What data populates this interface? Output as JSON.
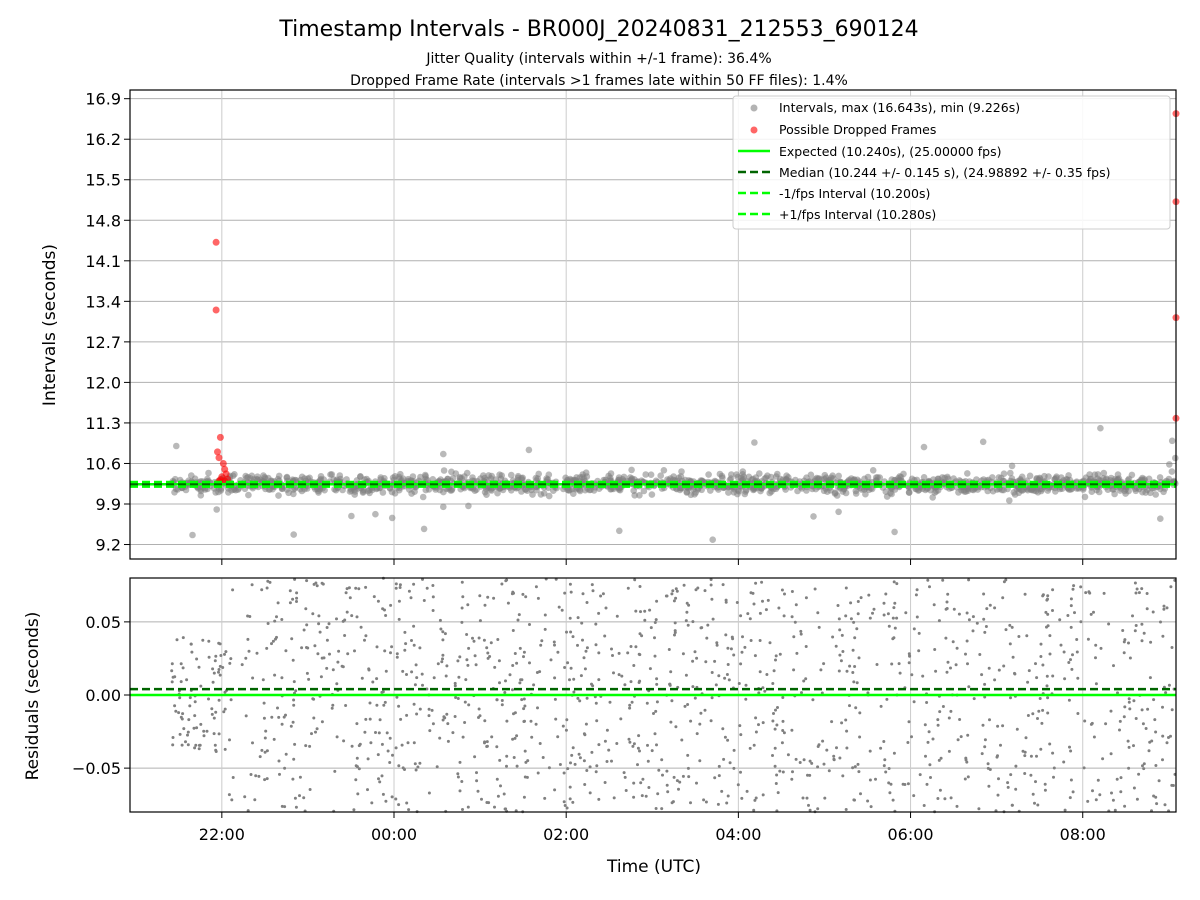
{
  "title": "Timestamp Intervals - BR000J_20240831_212553_690124",
  "subtitle_lines": [
    "Jitter Quality (intervals within +/-1 frame): 36.4%",
    "Dropped Frame Rate (intervals >1 frames late within 50 FF files): 1.4%"
  ],
  "colors": {
    "intervals": "#808080",
    "dropped": "#ff0000",
    "expected": "#00ff00",
    "median": "#006400",
    "jitter_bound": "#00ff00",
    "grid": "#b0b0b0"
  },
  "chart_data": [
    {
      "type": "scatter",
      "panel": "intervals",
      "ylabel": "Intervals (seconds)",
      "ylim": [
        8.95,
        17.05
      ],
      "y_ticks": [
        "9.2",
        "9.9",
        "10.6",
        "11.3",
        "12.0",
        "12.7",
        "13.4",
        "14.1",
        "14.8",
        "15.5",
        "16.2",
        "16.9"
      ],
      "grid": true,
      "legend_position": "top-right",
      "legend": [
        "Intervals, max (16.643s), min (9.226s)",
        "Possible Dropped Frames",
        "Expected (10.240s), (25.00000 fps)",
        "Median (10.244 +/- 0.145 s), (24.98892 +/- 0.35 fps)",
        "-1/fps Interval (10.200s)",
        "+1/fps Interval (10.280s)"
      ],
      "x_range": [
        "2024-08-31 20:54 UTC",
        "2024-09-01 09:05 UTC"
      ],
      "intervals_summary": {
        "start": "2024-08-31 21:25 UTC",
        "end": "2024-09-01 09:05 UTC",
        "center": 10.24,
        "typical_spread": 0.15,
        "max": 16.643,
        "min": 9.226
      },
      "reference_lines": {
        "expected": 10.24,
        "median": 10.244,
        "minus_1_fps": 10.2,
        "plus_1_fps": 10.28
      },
      "possible_dropped_frames": [
        {
          "t": "21:56",
          "y": 14.42
        },
        {
          "t": "21:56",
          "y": 13.25
        },
        {
          "t": "21:59",
          "y": 11.05
        },
        {
          "t": "21:57",
          "y": 10.8
        },
        {
          "t": "21:58",
          "y": 10.7
        },
        {
          "t": "22:01",
          "y": 10.6
        },
        {
          "t": "22:02",
          "y": 10.5
        },
        {
          "t": "22:03",
          "y": 10.42
        },
        {
          "t": "22:00",
          "y": 10.37
        },
        {
          "t": "21:59",
          "y": 10.32
        },
        {
          "t": "21:58",
          "y": 10.29
        },
        {
          "t": "22:02",
          "y": 10.3
        },
        {
          "t": "22:04",
          "y": 10.33
        },
        {
          "t": "09:05",
          "y": 16.643
        },
        {
          "t": "09:05",
          "y": 15.12
        },
        {
          "t": "09:05",
          "y": 13.12
        },
        {
          "t": "09:05",
          "y": 11.38
        }
      ]
    },
    {
      "type": "scatter",
      "panel": "residuals",
      "xlabel": "Time (UTC)",
      "ylabel": "Residuals (seconds)",
      "ylim": [
        -0.08,
        0.08
      ],
      "y_ticks": [
        "0.05",
        "0.00",
        "−0.05"
      ],
      "x_ticks": [
        "22:00",
        "00:00",
        "02:00",
        "04:00",
        "06:00",
        "08:00"
      ],
      "grid": true,
      "residuals_summary": {
        "start": "2024-08-31 21:25 UTC",
        "end": "2024-09-01 09:05 UTC",
        "first_hour_range": [
          -0.04,
          0.04
        ],
        "spread_after": "fills the plotted range"
      },
      "reference_lines": {
        "expected": 0.0,
        "median": 0.004
      }
    }
  ]
}
